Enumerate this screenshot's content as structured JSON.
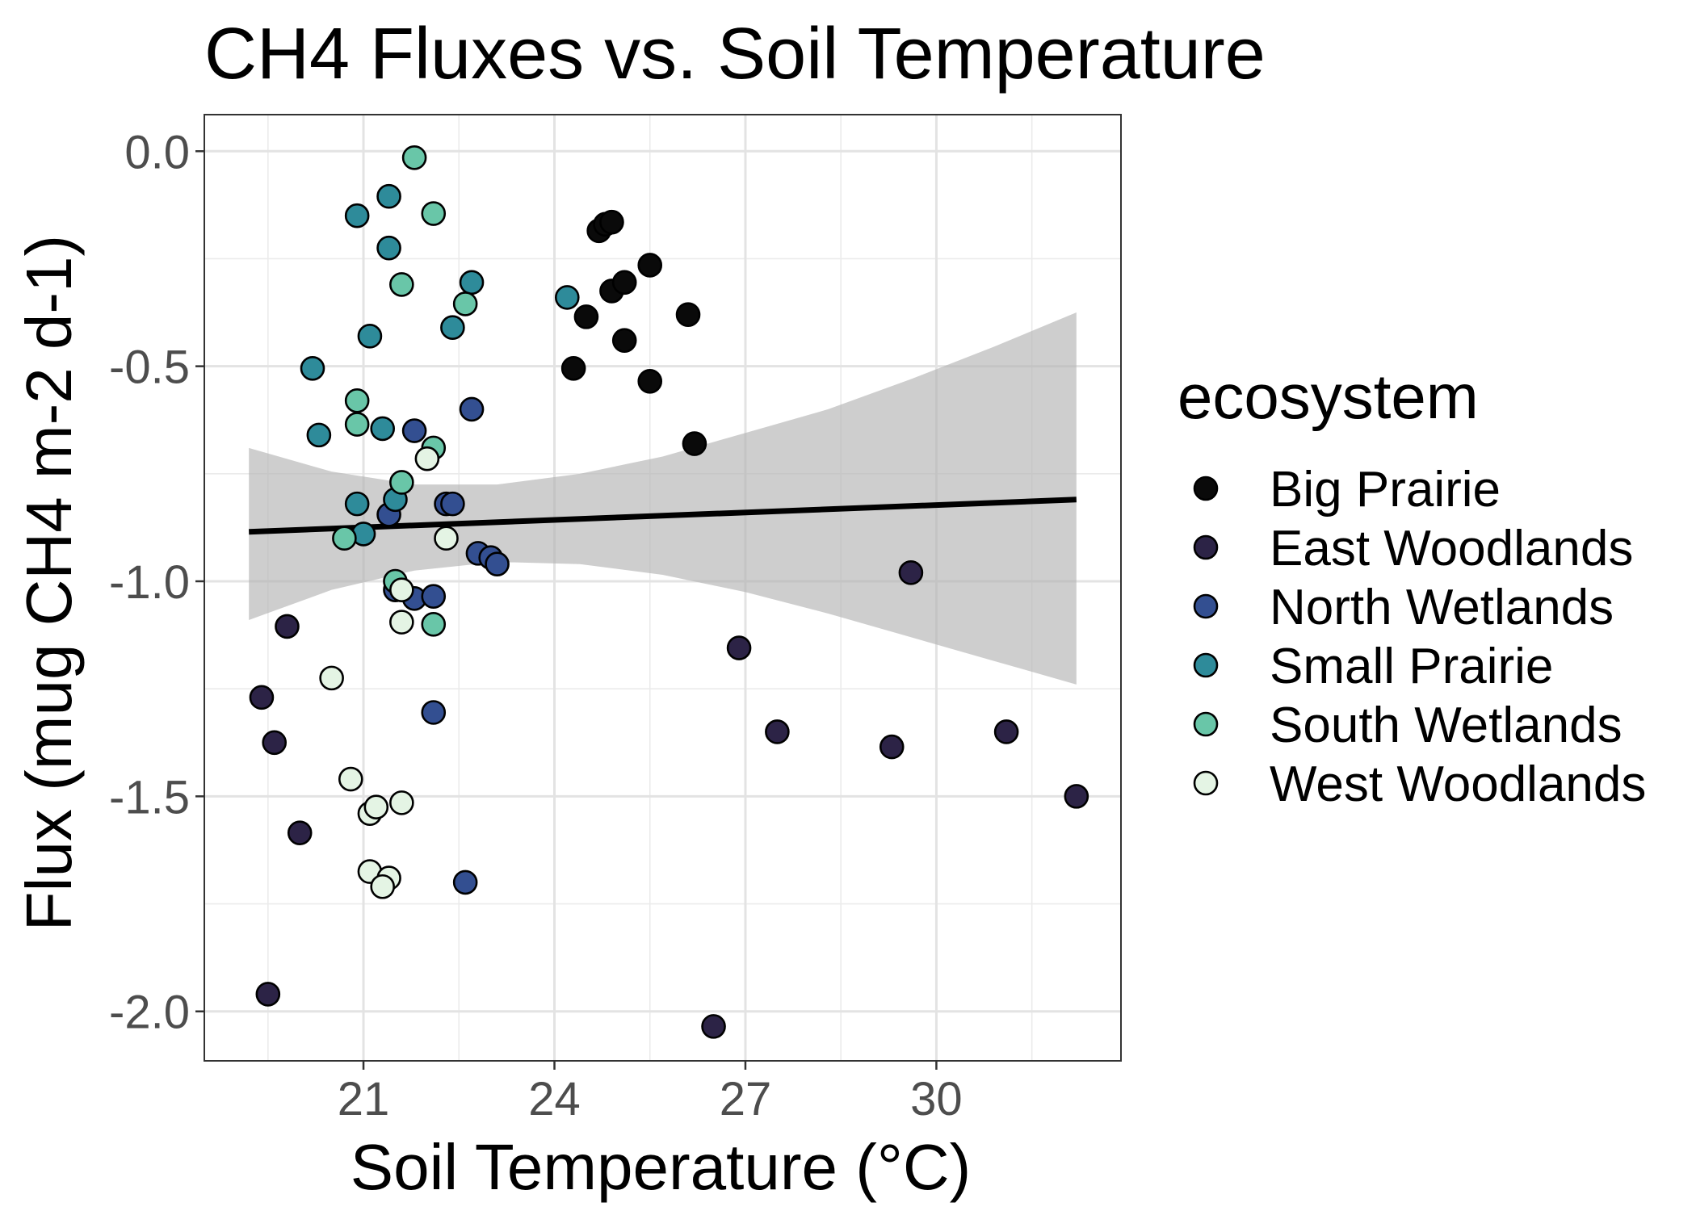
{
  "chart_data": {
    "type": "scatter",
    "title": "CH4 Fluxes vs. Soil Temperature",
    "xlabel": "Soil Temperature (°C)",
    "ylabel": "Flux (mug CH4 m-2 d-1)",
    "xlim": [
      18.5,
      32.9
    ],
    "ylim": [
      -2.115,
      0.085
    ],
    "x_ticks": [
      21,
      24,
      27,
      30
    ],
    "x_tick_labels": [
      "21",
      "24",
      "27",
      "30"
    ],
    "y_ticks": [
      0.0,
      -0.5,
      -1.0,
      -1.5,
      -2.0
    ],
    "y_tick_labels": [
      "0.0",
      "-0.5",
      "-1.0",
      "-1.5",
      "-2.0"
    ],
    "grid": true,
    "legend": {
      "title": "ecosystem",
      "position": "right"
    },
    "trend": {
      "x": [
        19.2,
        32.2
      ],
      "y": [
        -0.885,
        -0.81
      ]
    },
    "confidence_band": {
      "x": [
        19.2,
        20.5,
        21.8,
        23.1,
        24.4,
        25.7,
        27.0,
        28.3,
        29.6,
        30.9,
        32.2
      ],
      "upper": [
        -0.69,
        -0.745,
        -0.775,
        -0.775,
        -0.75,
        -0.71,
        -0.655,
        -0.6,
        -0.53,
        -0.455,
        -0.375
      ],
      "lower": [
        -1.09,
        -1.02,
        -0.975,
        -0.955,
        -0.96,
        -0.985,
        -1.025,
        -1.075,
        -1.13,
        -1.185,
        -1.24
      ]
    },
    "series": [
      {
        "name": "Big Prairie",
        "color": "#0a0a0a",
        "x": [
          24.5,
          24.3,
          24.7,
          24.8,
          24.9,
          24.9,
          25.1,
          25.1,
          25.5,
          25.5,
          26.1,
          26.2
        ],
        "y": [
          -0.385,
          -0.505,
          -0.185,
          -0.17,
          -0.165,
          -0.325,
          -0.305,
          -0.44,
          -0.265,
          -0.535,
          -0.38,
          -0.68
        ]
      },
      {
        "name": "East Woodlands",
        "color": "#2c2346",
        "x": [
          19.4,
          19.6,
          19.5,
          19.8,
          20.0,
          26.5,
          26.9,
          27.5,
          29.3,
          29.6,
          31.1,
          32.2
        ],
        "y": [
          -1.27,
          -1.375,
          -1.96,
          -1.105,
          -1.585,
          -2.035,
          -1.155,
          -1.35,
          -1.385,
          -0.98,
          -1.35,
          -1.5
        ]
      },
      {
        "name": "North Wetlands",
        "color": "#334f91",
        "x": [
          21.4,
          21.5,
          21.8,
          21.8,
          22.1,
          22.1,
          22.7,
          22.6,
          22.3,
          22.4,
          22.8,
          23.0,
          23.1
        ],
        "y": [
          -0.845,
          -1.02,
          -0.65,
          -1.04,
          -1.305,
          -1.035,
          -0.6,
          -1.7,
          -0.82,
          -0.82,
          -0.935,
          -0.945,
          -0.96
        ]
      },
      {
        "name": "Small Prairie",
        "color": "#2e8b9a",
        "x": [
          20.2,
          20.3,
          20.9,
          21.1,
          21.4,
          21.4,
          21.3,
          22.4,
          22.7,
          24.2,
          20.9,
          21.0,
          21.5
        ],
        "y": [
          -0.505,
          -0.66,
          -0.15,
          -0.43,
          -0.105,
          -0.225,
          -0.645,
          -0.41,
          -0.305,
          -0.34,
          -0.82,
          -0.89,
          -0.81
        ]
      },
      {
        "name": "South Wetlands",
        "color": "#69c6a8",
        "x": [
          21.8,
          22.1,
          21.6,
          22.6,
          20.9,
          20.9,
          22.1,
          21.6,
          20.7,
          21.5,
          22.1
        ],
        "y": [
          -0.015,
          -0.145,
          -0.31,
          -0.355,
          -0.58,
          -0.635,
          -0.69,
          -0.77,
          -0.9,
          -1.0,
          -1.1
        ]
      },
      {
        "name": "West Woodlands",
        "color": "#e4f4e4",
        "x": [
          22.0,
          22.3,
          21.6,
          21.6,
          20.5,
          20.8,
          21.1,
          21.2,
          21.6,
          21.1,
          21.4,
          21.3
        ],
        "y": [
          -0.715,
          -0.9,
          -1.02,
          -1.095,
          -1.225,
          -1.46,
          -1.54,
          -1.525,
          -1.515,
          -1.675,
          -1.69,
          -1.71
        ]
      }
    ]
  }
}
